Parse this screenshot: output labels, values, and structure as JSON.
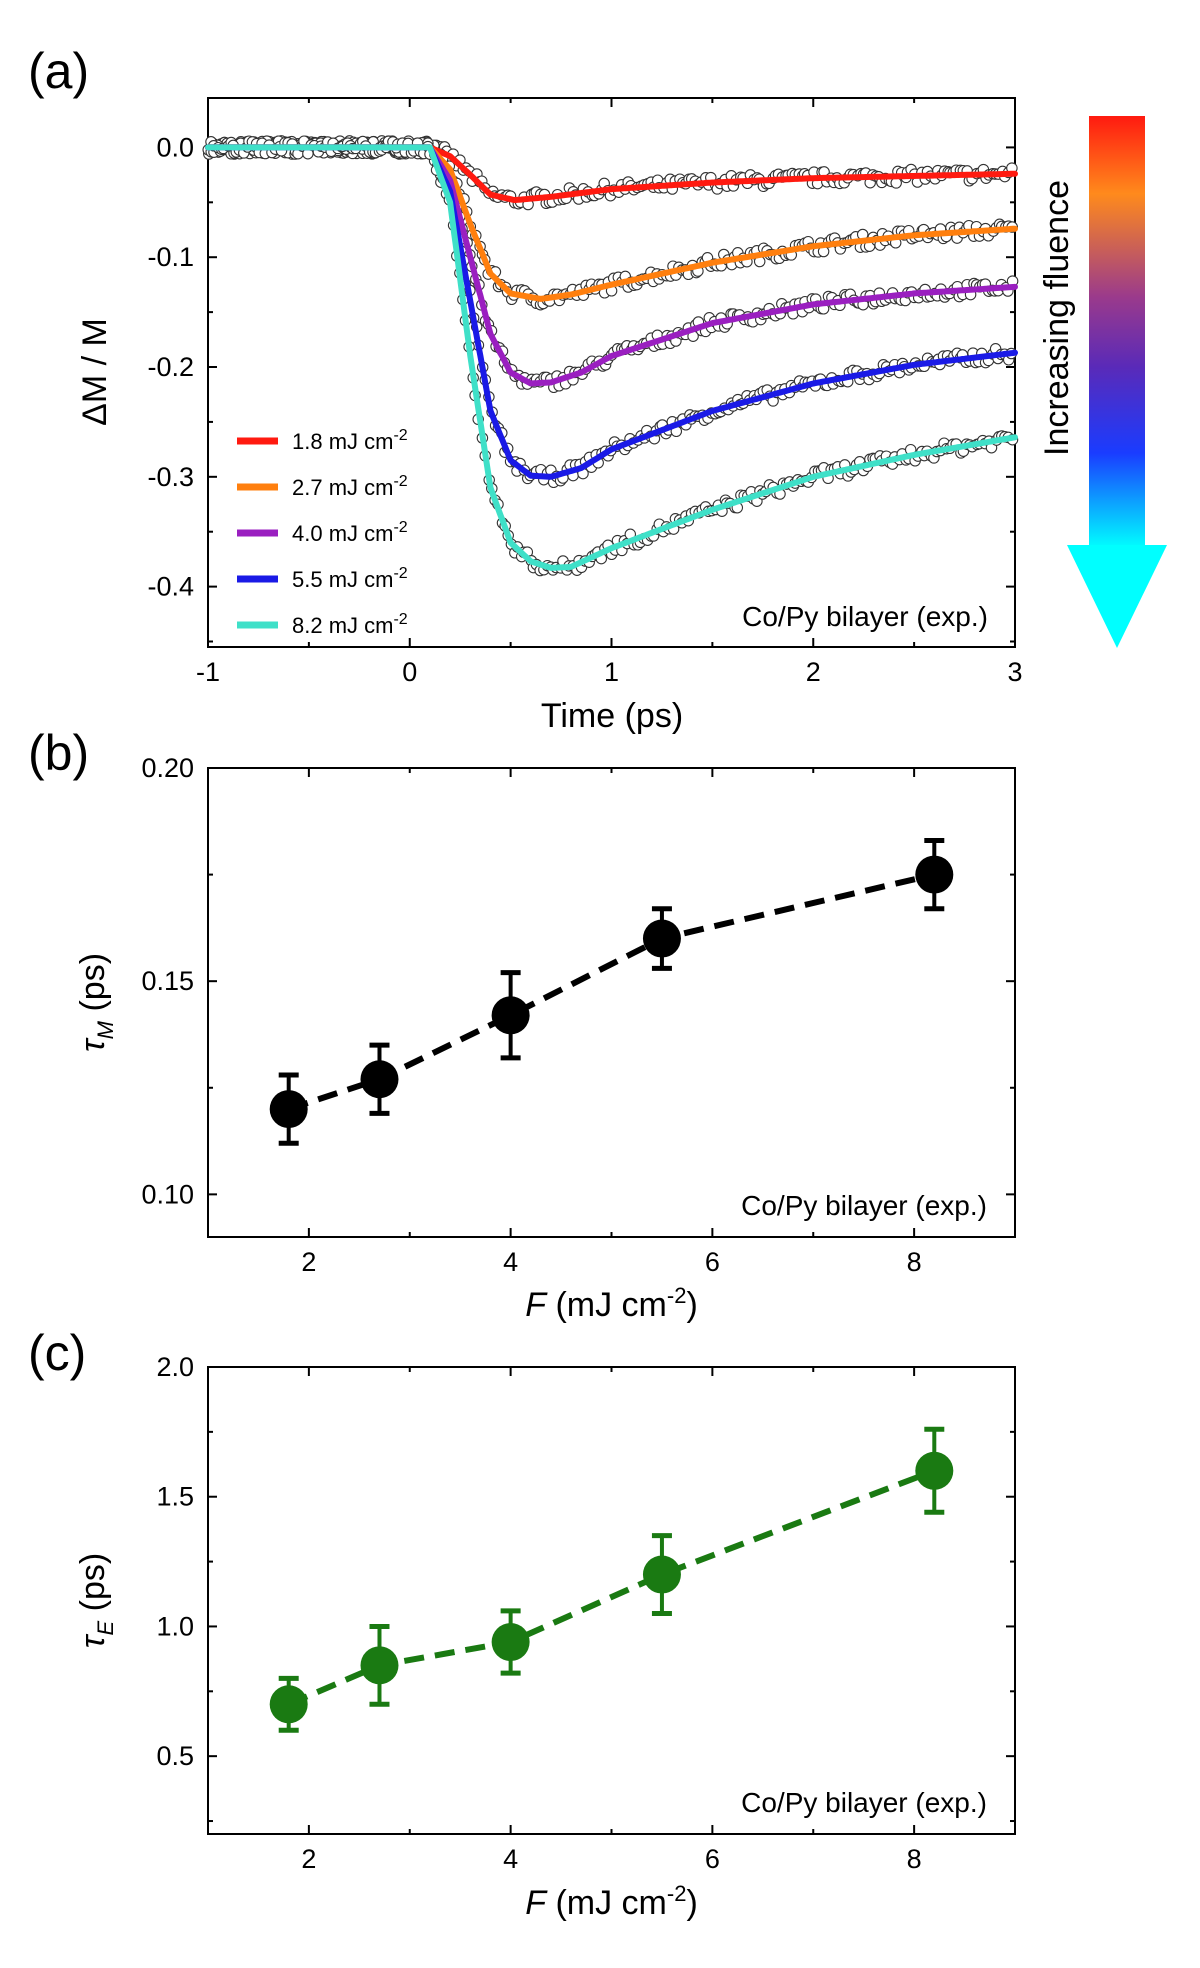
{
  "colorbar": {
    "label": "Increasing fluence",
    "top_color": "#ff1a10",
    "bottom_color": "#00ffff"
  },
  "chart_data": [
    {
      "panel": "(a)",
      "type": "line",
      "xlabel": "Time (ps)",
      "ylabel": "ΔM / M",
      "xlim": [
        -1,
        3
      ],
      "ylim": [
        -0.455,
        0.045
      ],
      "xticks": [
        -1,
        0,
        1,
        2,
        3
      ],
      "xtick_labels": [
        "-1",
        "0",
        "1",
        "2",
        "3"
      ],
      "yticks": [
        0.0,
        -0.1,
        -0.2,
        -0.3,
        -0.4
      ],
      "ytick_labels": [
        "0.0",
        "-0.1",
        "-0.2",
        "-0.3",
        "-0.4"
      ],
      "annotation": "Co/Py bilayer (exp.)",
      "legend_position": "bottom-left",
      "markers": "open circles (experimental data)",
      "series": [
        {
          "name": "1.8 mJ cm",
          "superscript": "-2",
          "color": "#ff1a10",
          "x": [
            -1,
            0.1,
            0.2,
            0.3,
            0.4,
            0.52,
            0.7,
            1.0,
            1.5,
            2.0,
            2.5,
            3.0
          ],
          "y": [
            0,
            0,
            -0.008,
            -0.025,
            -0.043,
            -0.048,
            -0.045,
            -0.038,
            -0.032,
            -0.028,
            -0.026,
            -0.024
          ]
        },
        {
          "name": "2.7 mJ cm",
          "superscript": "-2",
          "color": "#ff7f0e",
          "x": [
            -1,
            0.1,
            0.2,
            0.3,
            0.4,
            0.5,
            0.65,
            0.8,
            1.0,
            1.5,
            2.0,
            2.5,
            3.0
          ],
          "y": [
            0,
            0,
            -0.02,
            -0.07,
            -0.115,
            -0.133,
            -0.138,
            -0.134,
            -0.125,
            -0.105,
            -0.09,
            -0.08,
            -0.074
          ]
        },
        {
          "name": "4.0 mJ cm",
          "superscript": "-2",
          "color": "#9a1fc0",
          "x": [
            -1,
            0.1,
            0.2,
            0.3,
            0.4,
            0.5,
            0.6,
            0.7,
            0.85,
            1.0,
            1.5,
            2.0,
            2.5,
            3.0
          ],
          "y": [
            0,
            0,
            -0.03,
            -0.1,
            -0.17,
            -0.205,
            -0.215,
            -0.214,
            -0.205,
            -0.19,
            -0.16,
            -0.143,
            -0.133,
            -0.127
          ]
        },
        {
          "name": "5.5 mJ cm",
          "superscript": "-2",
          "color": "#1a1ae6",
          "x": [
            -1,
            0.1,
            0.2,
            0.3,
            0.4,
            0.5,
            0.6,
            0.7,
            0.85,
            1.0,
            1.5,
            2.0,
            2.5,
            3.0
          ],
          "y": [
            0,
            0,
            -0.04,
            -0.14,
            -0.24,
            -0.285,
            -0.299,
            -0.3,
            -0.292,
            -0.275,
            -0.24,
            -0.215,
            -0.198,
            -0.187
          ]
        },
        {
          "name": "8.2 mJ cm",
          "superscript": "-2",
          "color": "#3fe0c8",
          "x": [
            -1,
            0.1,
            0.2,
            0.3,
            0.4,
            0.5,
            0.6,
            0.7,
            0.8,
            1.0,
            1.5,
            2.0,
            2.5,
            3.0
          ],
          "y": [
            0,
            0,
            -0.05,
            -0.19,
            -0.31,
            -0.36,
            -0.377,
            -0.383,
            -0.382,
            -0.365,
            -0.33,
            -0.3,
            -0.28,
            -0.264
          ]
        }
      ]
    },
    {
      "panel": "(b)",
      "type": "scatter",
      "xlabel_symbol": "F",
      "xlabel_rest": " (mJ cm",
      "xlabel_sup": "-2",
      "xlabel_close": ")",
      "ylabel_symbol": "τ",
      "ylabel_sub": "M",
      "ylabel_rest": " (ps)",
      "xlim": [
        1,
        9
      ],
      "ylim": [
        0.09,
        0.2
      ],
      "xticks": [
        2,
        4,
        6,
        8
      ],
      "xtick_labels": [
        "2",
        "4",
        "6",
        "8"
      ],
      "yticks": [
        0.1,
        0.15,
        0.2
      ],
      "ytick_labels": [
        "0.10",
        "0.15",
        "0.20"
      ],
      "annotation": "Co/Py bilayer (exp.)",
      "color": "#000000",
      "line_style": "dashed",
      "x": [
        1.8,
        2.7,
        4.0,
        5.5,
        8.2
      ],
      "y": [
        0.12,
        0.127,
        0.142,
        0.16,
        0.175
      ],
      "err": [
        0.008,
        0.008,
        0.01,
        0.007,
        0.008
      ]
    },
    {
      "panel": "(c)",
      "type": "scatter",
      "xlabel_symbol": "F",
      "xlabel_rest": " (mJ cm",
      "xlabel_sup": "-2",
      "xlabel_close": ")",
      "ylabel_symbol": "τ",
      "ylabel_sub": "E",
      "ylabel_rest": " (ps)",
      "xlim": [
        1,
        9
      ],
      "ylim": [
        0.2,
        2.0
      ],
      "xticks": [
        2,
        4,
        6,
        8
      ],
      "xtick_labels": [
        "2",
        "4",
        "6",
        "8"
      ],
      "yticks": [
        0.5,
        1.0,
        1.5,
        2.0
      ],
      "ytick_labels": [
        "0.5",
        "1.0",
        "1.5",
        "2.0"
      ],
      "annotation": "Co/Py bilayer (exp.)",
      "color": "#1a7a12",
      "line_style": "dashed",
      "x": [
        1.8,
        2.7,
        4.0,
        5.5,
        8.2
      ],
      "y": [
        0.7,
        0.85,
        0.94,
        1.2,
        1.6
      ],
      "err": [
        0.1,
        0.15,
        0.12,
        0.15,
        0.16
      ]
    }
  ]
}
